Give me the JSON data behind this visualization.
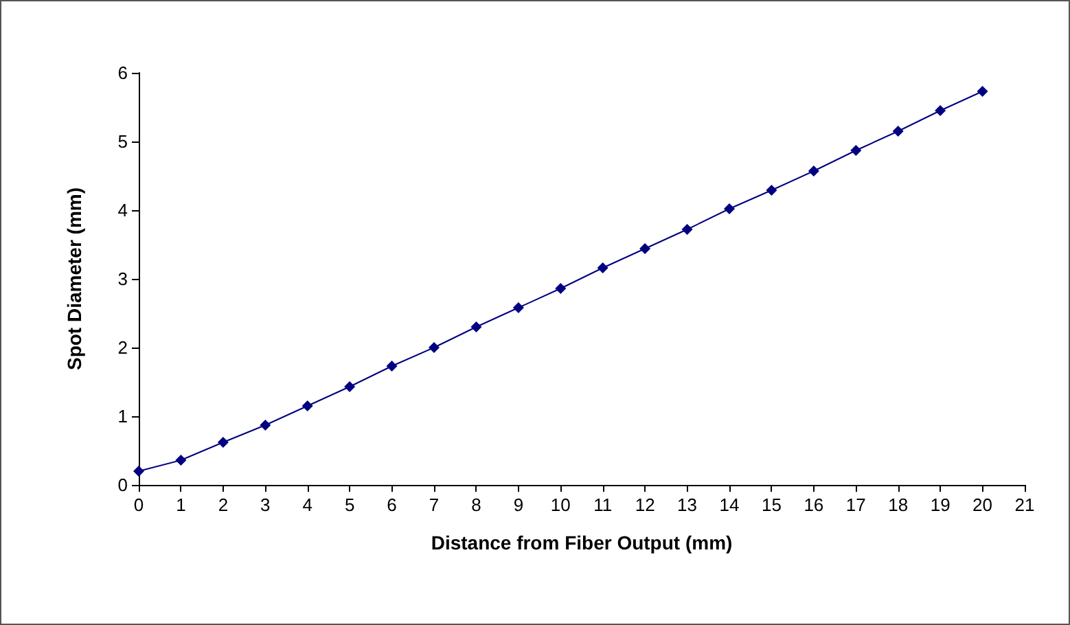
{
  "chart_data": {
    "type": "line",
    "xlabel": "Distance from Fiber Output (mm)",
    "ylabel": "Spot Diameter (mm)",
    "x": [
      0,
      1,
      2,
      3,
      4,
      5,
      6,
      7,
      8,
      9,
      10,
      11,
      12,
      13,
      14,
      15,
      16,
      17,
      18,
      19,
      20
    ],
    "series": [
      {
        "color": "#000080",
        "values": [
          0.2,
          0.36,
          0.62,
          0.87,
          1.15,
          1.43,
          1.73,
          2.0,
          2.3,
          2.58,
          2.86,
          3.16,
          3.44,
          3.72,
          4.02,
          4.29,
          4.57,
          4.87,
          5.15,
          5.45,
          5.73
        ]
      }
    ],
    "xlim": [
      0,
      21
    ],
    "xticks": [
      0,
      1,
      2,
      3,
      4,
      5,
      6,
      7,
      8,
      9,
      10,
      11,
      12,
      13,
      14,
      15,
      16,
      17,
      18,
      19,
      20,
      21
    ],
    "ylim": [
      0,
      6
    ],
    "yticks": [
      0,
      1,
      2,
      3,
      4,
      5,
      6
    ],
    "marker": "diamond",
    "line_style": "solid"
  }
}
